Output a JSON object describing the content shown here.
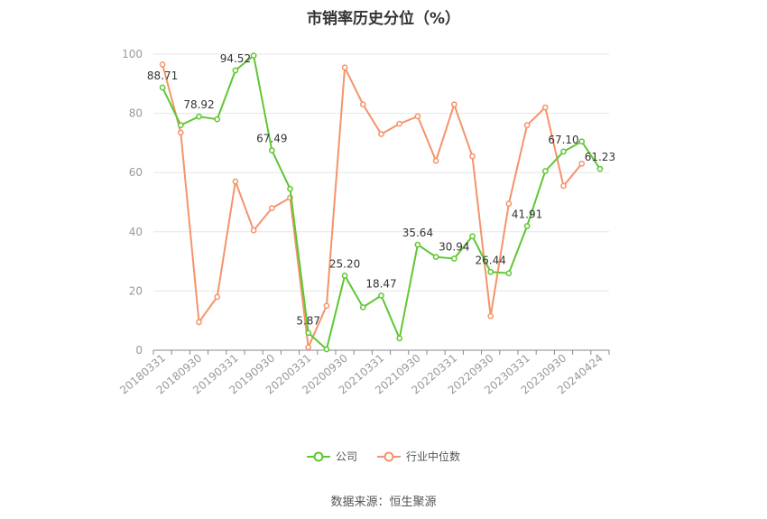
{
  "chart_data": {
    "type": "line",
    "title": "市销率历史分位（%）",
    "ylim": [
      0,
      100
    ],
    "yticks": [
      0,
      20,
      40,
      60,
      80,
      100
    ],
    "x": [
      "20180331",
      "20180630",
      "20180930",
      "20181231",
      "20190331",
      "20190630",
      "20190930",
      "20191231",
      "20200331",
      "20200630",
      "20200930",
      "20201231",
      "20210331",
      "20210630",
      "20210930",
      "20211231",
      "20220331",
      "20220630",
      "20220930",
      "20221231",
      "20230331",
      "20230630",
      "20230930",
      "20231231",
      "20240424"
    ],
    "xtick_labels": [
      "20180331",
      "20180930",
      "20190331",
      "20190930",
      "20200331",
      "20200930",
      "20210331",
      "20210930",
      "20220331",
      "20220930",
      "20230331",
      "20230930",
      "20240424"
    ],
    "series": [
      {
        "name": "公司",
        "color": "#5ec732",
        "values": [
          88.71,
          76,
          78.92,
          78,
          94.52,
          99.5,
          67.49,
          54.5,
          5.87,
          0.3,
          25.2,
          14.5,
          18.47,
          4,
          35.64,
          31.5,
          30.94,
          38.5,
          26.44,
          26,
          41.91,
          60.5,
          67.1,
          70.5,
          61.23
        ],
        "labels": {
          "0": "88.71",
          "2": "78.92",
          "4": "94.52",
          "6": "67.49",
          "8": "5.87",
          "10": "25.20",
          "12": "18.47",
          "14": "35.64",
          "16": "30.94",
          "18": "26.44",
          "20": "41.91",
          "22": "67.10",
          "24": "61.23"
        }
      },
      {
        "name": "行业中位数",
        "color": "#f5936a",
        "values": [
          96.5,
          73.5,
          9.5,
          18,
          57,
          40.5,
          48,
          51.5,
          1,
          15,
          95.5,
          83,
          73,
          76.5,
          79,
          64,
          83,
          65.5,
          11.5,
          49.5,
          76,
          82,
          55.5,
          63,
          null
        ]
      }
    ],
    "legend": [
      "公司",
      "行业中位数"
    ],
    "legend_position": "bottom",
    "grid": true
  },
  "source": "数据来源：恒生聚源"
}
